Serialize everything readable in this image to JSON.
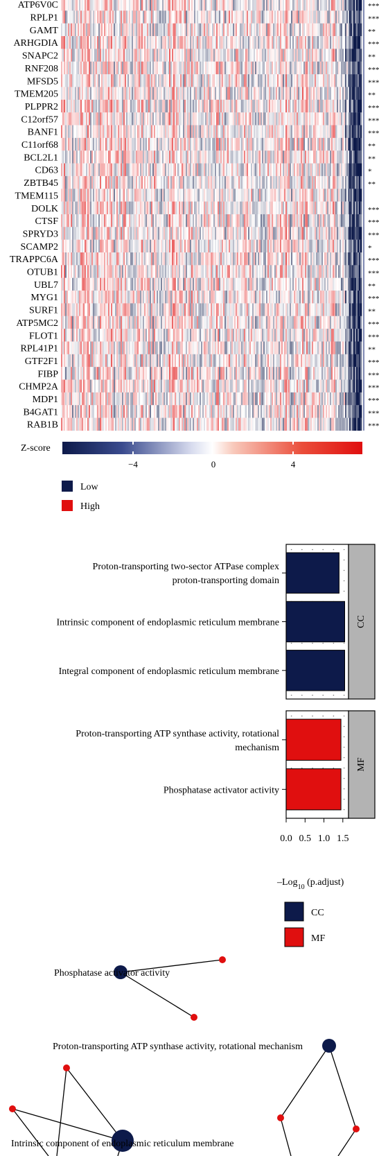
{
  "heatmap": {
    "genes": [
      "ATP6V0C",
      "RPLP1",
      "GAMT",
      "ARHGDIA",
      "SNAPC2",
      "RNF208",
      "MFSD5",
      "TMEM205",
      "PLPPR2",
      "C12orf57",
      "BANF1",
      "C11orf68",
      "BCL2L1",
      "CD63",
      "ZBTB45",
      "TMEM115",
      "DOLK",
      "CTSF",
      "SPRYD3",
      "SCAMP2",
      "TRAPPC6A",
      "OTUB1",
      "UBL7",
      "MYG1",
      "SURF1",
      "ATP5MC2",
      "FLOT1",
      "RPL41P1",
      "GTF2F1",
      "FIBP",
      "CHMP2A",
      "MDP1",
      "B4GAT1",
      "RAB1B"
    ],
    "significance": [
      "***",
      "***",
      "**",
      "***",
      "**",
      "***",
      "***",
      "**",
      "***",
      "***",
      "***",
      "**",
      "**",
      "*",
      "**",
      "",
      "***",
      "***",
      "***",
      "*",
      "***",
      "***",
      "**",
      "***",
      "**",
      "***",
      "***",
      "**",
      "***",
      "***",
      "***",
      "***",
      "***",
      "***"
    ],
    "colorbar": {
      "title": "Z-score",
      "ticks": [
        "−4",
        "0",
        "4"
      ],
      "range": [
        -7.5,
        7.5
      ]
    },
    "groups": [
      {
        "label": "Low",
        "color": "#0d1a4a"
      },
      {
        "label": "High",
        "color": "#e00f0f"
      }
    ],
    "colors": {
      "low": "#0d1a4a",
      "mid": "#ffffff",
      "high": "#e00f0f"
    }
  },
  "chart_data": {
    "type": "bar",
    "orientation": "horizontal",
    "panels": [
      {
        "facet": "CC",
        "color": "#0d1a4a",
        "categories": [
          [
            "Proton-transporting two-sector ATPase complex",
            "proton-transporting domain"
          ],
          [
            "Intrinsic component of endoplasmic reticulum membrane"
          ],
          [
            "Integral component of endoplasmic reticulum membrane"
          ]
        ],
        "values": [
          1.4,
          1.55,
          1.55
        ]
      },
      {
        "facet": "MF",
        "color": "#e00f0f",
        "categories": [
          [
            "Proton-transporting ATP synthase activity, rotational",
            "mechanism"
          ],
          [
            "Phosphatase activator activity"
          ]
        ],
        "values": [
          1.45,
          1.45
        ]
      }
    ],
    "xlim": [
      0,
      1.65
    ],
    "xticks": [
      "0.0",
      "0.5",
      "1.0",
      "1.5"
    ],
    "xlabel": {
      "pre": "–Log",
      "sub": "10",
      "post": " (p.adjust)"
    },
    "legend": [
      {
        "label": "CC",
        "color": "#0d1a4a"
      },
      {
        "label": "MF",
        "color": "#e00f0f"
      }
    ]
  },
  "network": {
    "labels": [
      "Phosphatase activator activity",
      "Proton-transporting ATP synthase activity, rotational mechanism",
      "Intrinsic component of endoplasmic reticulum membrane"
    ],
    "colors": {
      "term": "#0d1a4a",
      "gene": "#e00f0f"
    }
  }
}
